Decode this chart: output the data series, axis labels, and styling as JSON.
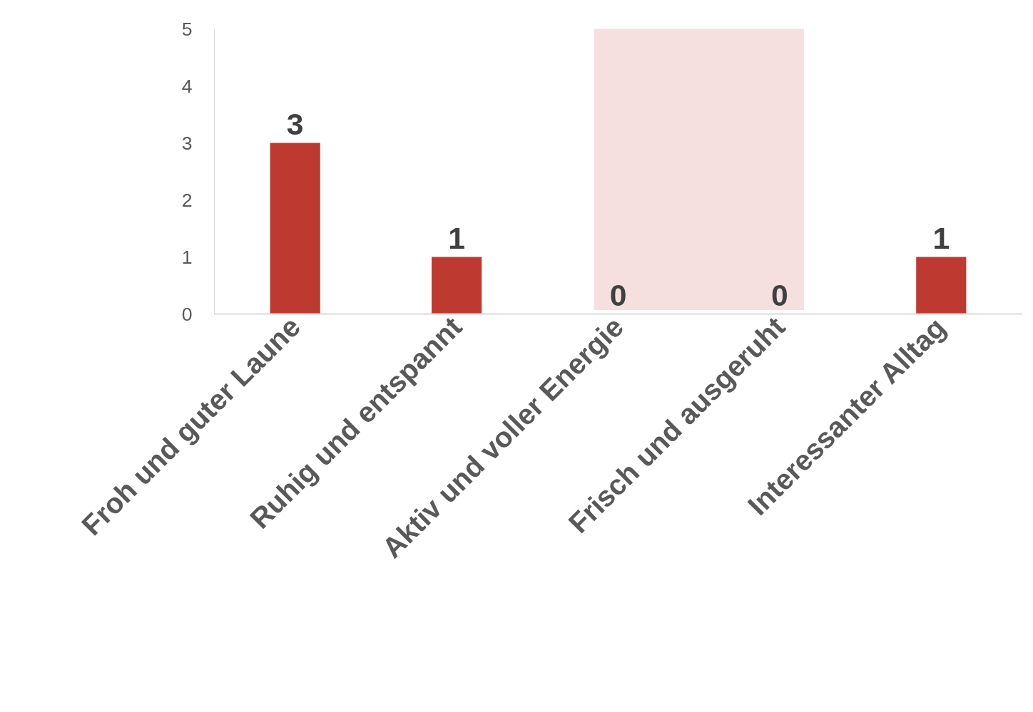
{
  "chart_data": {
    "type": "bar",
    "categories": [
      "Froh und guter Laune",
      "Ruhig und entspannt",
      "Aktiv und voller Energie",
      "Frisch und ausgeruht",
      "Interessanter Alltag"
    ],
    "values": [
      3,
      1,
      0,
      0,
      1
    ],
    "color": "#be3a31",
    "ylim": [
      0,
      5
    ],
    "yticks": [
      0,
      1,
      2,
      3,
      4,
      5
    ],
    "grid": false,
    "legend": false,
    "data_labels": true,
    "bands": [
      {
        "axis": "x",
        "from": "Aktiv und voller Energie",
        "to": "Frisch und ausgeruht",
        "color": "#f5dfdf"
      }
    ]
  }
}
